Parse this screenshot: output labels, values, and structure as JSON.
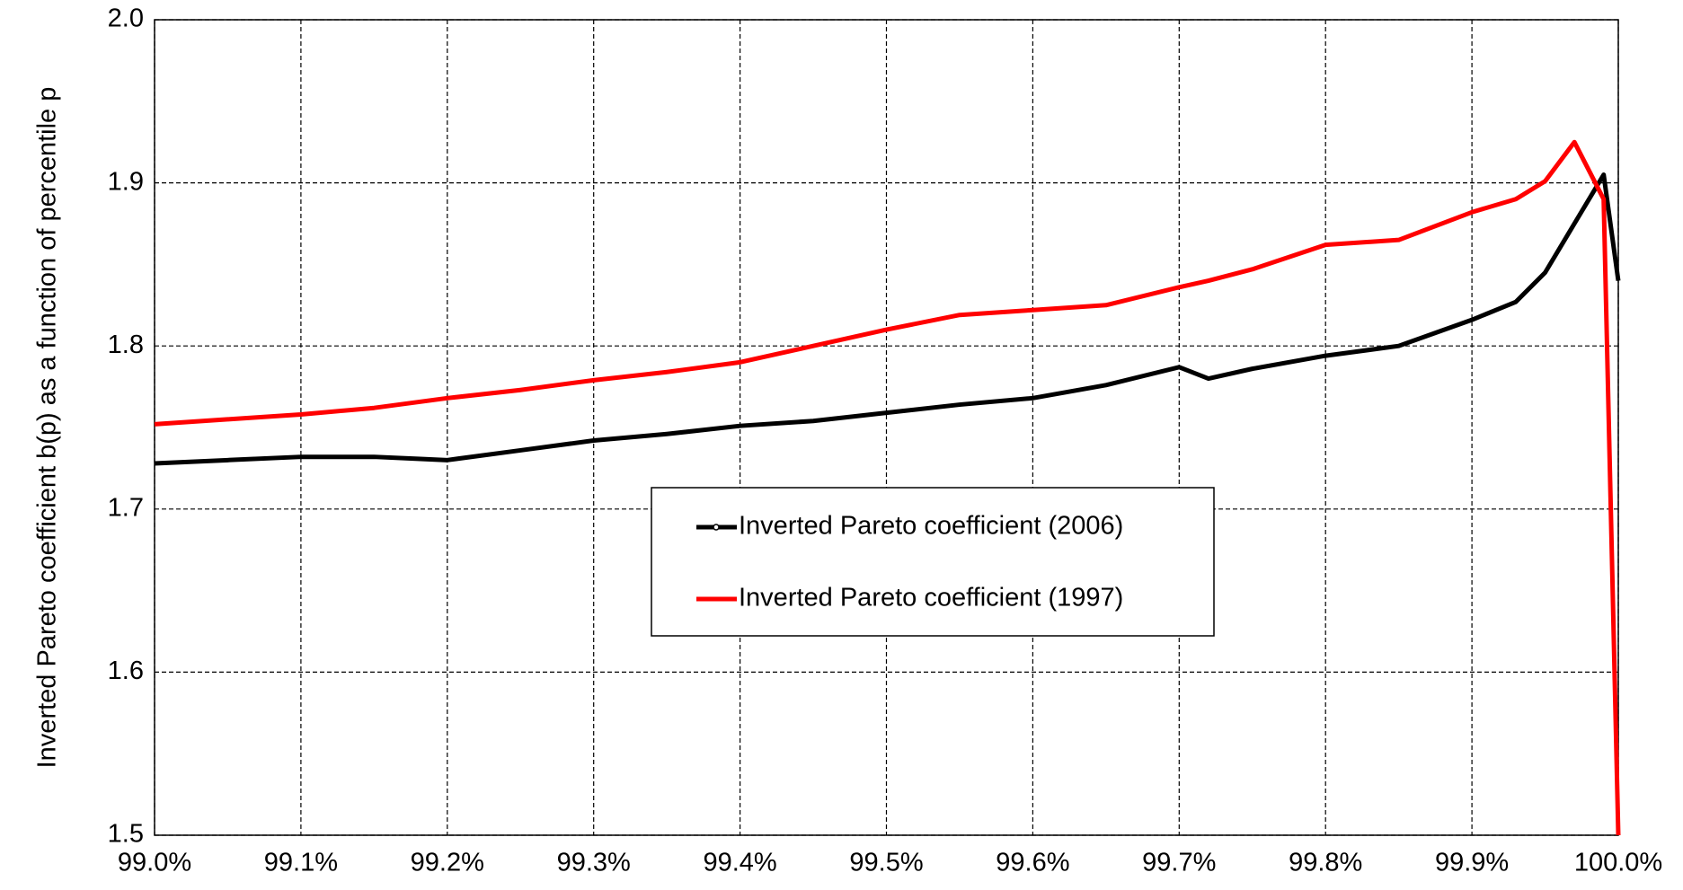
{
  "chart_data": {
    "type": "line",
    "y_label": "Inverted Pareto coefficient b(p) as a function of percentile p",
    "xlim": [
      99.0,
      100.0
    ],
    "xticks": [
      {
        "value": 99.0,
        "label": "99.0%"
      },
      {
        "value": 99.1,
        "label": "99.1%"
      },
      {
        "value": 99.2,
        "label": "99.2%"
      },
      {
        "value": 99.3,
        "label": "99.3%"
      },
      {
        "value": 99.4,
        "label": "99.4%"
      },
      {
        "value": 99.5,
        "label": "99.5%"
      },
      {
        "value": 99.6,
        "label": "99.6%"
      },
      {
        "value": 99.7,
        "label": "99.7%"
      },
      {
        "value": 99.8,
        "label": "99.8%"
      },
      {
        "value": 99.9,
        "label": "99.9%"
      },
      {
        "value": 100.0,
        "label": "100.0%"
      }
    ],
    "ylim": [
      1.5,
      2.0
    ],
    "yticks": [
      1.5,
      1.6,
      1.7,
      1.8,
      1.9,
      {
        "value": 2.0,
        "label": "2.0"
      }
    ],
    "grid": true,
    "x": [
      99.0,
      99.05,
      99.1,
      99.15,
      99.2,
      99.25,
      99.3,
      99.35,
      99.4,
      99.45,
      99.5,
      99.55,
      99.6,
      99.65,
      99.7,
      99.72,
      99.75,
      99.8,
      99.85,
      99.9,
      99.93,
      99.95,
      99.97,
      99.99,
      100.0
    ],
    "series": [
      {
        "name": "Inverted Pareto coefficient (2006)",
        "color": "#000000",
        "marker": true,
        "values": [
          1.728,
          1.73,
          1.732,
          1.732,
          1.73,
          1.736,
          1.742,
          1.746,
          1.751,
          1.754,
          1.759,
          1.764,
          1.768,
          1.776,
          1.787,
          1.78,
          1.786,
          1.794,
          1.8,
          1.816,
          1.827,
          1.845,
          1.875,
          1.905,
          1.84
        ]
      },
      {
        "name": "Inverted Pareto coefficient (1997)",
        "color": "#ff0000",
        "marker": false,
        "values": [
          1.752,
          1.755,
          1.758,
          1.762,
          1.768,
          1.773,
          1.779,
          1.784,
          1.79,
          1.8,
          1.81,
          1.819,
          1.822,
          1.825,
          1.836,
          1.84,
          1.847,
          1.862,
          1.865,
          1.882,
          1.89,
          1.901,
          1.925,
          1.89,
          1.5
        ]
      }
    ]
  }
}
